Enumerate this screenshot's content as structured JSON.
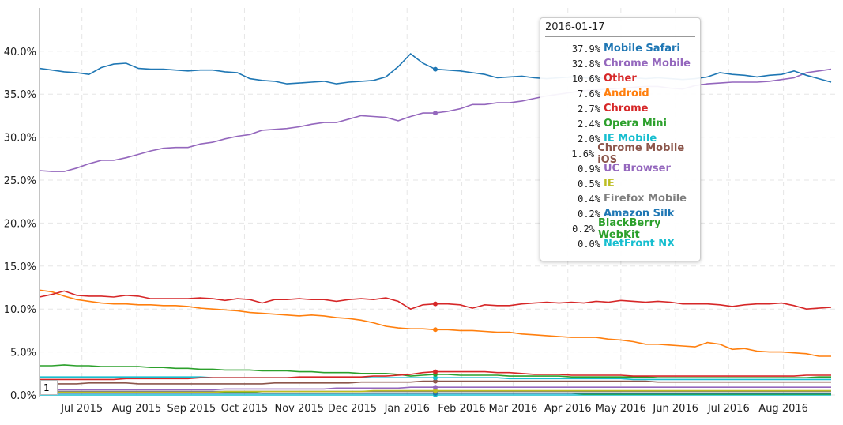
{
  "chart_data": {
    "type": "line",
    "x_range": [
      "2015-06-07",
      "2016-08-28"
    ],
    "x_frequency": "weekly",
    "xticks": [
      "Jul 2015",
      "Aug 2015",
      "Sep 2015",
      "Oct 2015",
      "Nov 2015",
      "Dec 2015",
      "Jan 2016",
      "Feb 2016",
      "Mar 2016",
      "Apr 2016",
      "May 2016",
      "Jun 2016",
      "Jul 2016",
      "Aug 2016"
    ],
    "yticks": [
      "0.0%",
      "5.0%",
      "10.0%",
      "15.0%",
      "20.0%",
      "25.0%",
      "30.0%",
      "35.0%",
      "40.0%"
    ],
    "ylim": [
      0,
      43
    ],
    "grid": true,
    "series": [
      {
        "name": "Mobile Safari",
        "color": "#1f77b4",
        "values": [
          38.0,
          37.8,
          37.6,
          37.5,
          37.3,
          38.1,
          38.5,
          38.6,
          38.0,
          37.9,
          37.9,
          37.8,
          37.7,
          37.8,
          37.8,
          37.6,
          37.5,
          36.8,
          36.6,
          36.5,
          36.2,
          36.3,
          36.4,
          36.5,
          36.2,
          36.4,
          36.5,
          36.6,
          37.0,
          38.2,
          39.7,
          38.6,
          37.9,
          37.8,
          37.7,
          37.5,
          37.3,
          36.9,
          37.0,
          37.1,
          36.9,
          36.8,
          36.9,
          37.0,
          36.9,
          36.8,
          36.9,
          37.0,
          36.9,
          36.8,
          36.9,
          36.8,
          36.7,
          36.8,
          37.0,
          37.5,
          37.3,
          37.2,
          37.0,
          37.2,
          37.3,
          37.7,
          37.2,
          36.8,
          36.4
        ]
      },
      {
        "name": "Chrome Mobile",
        "color": "#9467bd",
        "values": [
          26.1,
          26.0,
          26.0,
          26.4,
          26.9,
          27.3,
          27.3,
          27.6,
          28.0,
          28.4,
          28.7,
          28.8,
          28.8,
          29.2,
          29.4,
          29.8,
          30.1,
          30.3,
          30.8,
          30.9,
          31.0,
          31.2,
          31.5,
          31.7,
          31.7,
          32.1,
          32.5,
          32.4,
          32.3,
          31.9,
          32.4,
          32.8,
          32.8,
          33.0,
          33.3,
          33.8,
          33.8,
          34.0,
          34.0,
          34.2,
          34.5,
          34.8,
          35.0,
          35.2,
          35.4,
          35.5,
          35.6,
          35.7,
          35.8,
          35.9,
          35.9,
          35.7,
          35.6,
          36.0,
          36.2,
          36.3,
          36.4,
          36.4,
          36.4,
          36.5,
          36.7,
          36.9,
          37.5,
          37.7,
          37.9
        ]
      },
      {
        "name": "Other",
        "color": "#d62728",
        "values": [
          11.4,
          11.7,
          12.1,
          11.6,
          11.5,
          11.5,
          11.4,
          11.6,
          11.5,
          11.2,
          11.2,
          11.2,
          11.2,
          11.3,
          11.2,
          11.0,
          11.2,
          11.1,
          10.7,
          11.1,
          11.1,
          11.2,
          11.1,
          11.1,
          10.9,
          11.1,
          11.2,
          11.1,
          11.3,
          10.9,
          10.0,
          10.5,
          10.6,
          10.6,
          10.5,
          10.1,
          10.5,
          10.4,
          10.4,
          10.6,
          10.7,
          10.8,
          10.7,
          10.8,
          10.7,
          10.9,
          10.8,
          11.0,
          10.9,
          10.8,
          10.9,
          10.8,
          10.6,
          10.6,
          10.6,
          10.5,
          10.3,
          10.5,
          10.6,
          10.6,
          10.7,
          10.4,
          10.0,
          10.1,
          10.2
        ]
      },
      {
        "name": "Android",
        "color": "#ff7f0e",
        "values": [
          12.2,
          12.0,
          11.5,
          11.1,
          10.9,
          10.7,
          10.6,
          10.6,
          10.5,
          10.5,
          10.4,
          10.4,
          10.3,
          10.1,
          10.0,
          9.9,
          9.8,
          9.6,
          9.5,
          9.4,
          9.3,
          9.2,
          9.3,
          9.2,
          9.0,
          8.9,
          8.7,
          8.4,
          8.0,
          7.8,
          7.7,
          7.7,
          7.6,
          7.6,
          7.5,
          7.5,
          7.4,
          7.3,
          7.3,
          7.1,
          7.0,
          6.9,
          6.8,
          6.7,
          6.7,
          6.7,
          6.5,
          6.4,
          6.2,
          5.9,
          5.9,
          5.8,
          5.7,
          5.6,
          6.1,
          5.9,
          5.3,
          5.4,
          5.1,
          5.0,
          5.0,
          4.9,
          4.8,
          4.5,
          4.5
        ]
      },
      {
        "name": "Chrome",
        "color": "#d62728",
        "values": [
          1.8,
          1.8,
          1.8,
          1.8,
          1.8,
          1.8,
          1.8,
          1.9,
          1.9,
          1.9,
          1.9,
          1.9,
          1.9,
          2.0,
          2.0,
          2.0,
          2.0,
          2.0,
          2.0,
          2.0,
          2.0,
          2.1,
          2.1,
          2.1,
          2.1,
          2.1,
          2.1,
          2.2,
          2.2,
          2.3,
          2.4,
          2.6,
          2.7,
          2.7,
          2.7,
          2.7,
          2.7,
          2.6,
          2.6,
          2.5,
          2.4,
          2.4,
          2.4,
          2.3,
          2.3,
          2.3,
          2.3,
          2.3,
          2.2,
          2.2,
          2.2,
          2.2,
          2.2,
          2.2,
          2.2,
          2.2,
          2.2,
          2.2,
          2.2,
          2.2,
          2.2,
          2.2,
          2.3,
          2.3,
          2.3
        ]
      },
      {
        "name": "Opera Mini",
        "color": "#2ca02c",
        "values": [
          3.4,
          3.4,
          3.5,
          3.4,
          3.4,
          3.3,
          3.3,
          3.3,
          3.3,
          3.2,
          3.2,
          3.1,
          3.1,
          3.0,
          3.0,
          2.9,
          2.9,
          2.9,
          2.8,
          2.8,
          2.8,
          2.7,
          2.7,
          2.6,
          2.6,
          2.6,
          2.5,
          2.5,
          2.5,
          2.4,
          2.2,
          2.3,
          2.4,
          2.4,
          2.3,
          2.3,
          2.3,
          2.3,
          2.2,
          2.2,
          2.2,
          2.2,
          2.2,
          2.1,
          2.1,
          2.1,
          2.1,
          2.1,
          2.1,
          2.1,
          2.0,
          2.0,
          2.0,
          2.0,
          2.0,
          2.0,
          2.0,
          2.0,
          2.0,
          2.0,
          2.0,
          2.0,
          2.0,
          2.1,
          2.1
        ]
      },
      {
        "name": "IE Mobile",
        "color": "#17becf",
        "values": [
          2.1,
          2.1,
          2.1,
          2.1,
          2.1,
          2.1,
          2.1,
          2.1,
          2.1,
          2.1,
          2.1,
          2.1,
          2.1,
          2.1,
          2.0,
          2.0,
          2.0,
          2.0,
          2.0,
          2.0,
          2.0,
          2.0,
          2.0,
          2.0,
          2.0,
          2.0,
          2.0,
          2.0,
          2.0,
          2.0,
          2.0,
          2.0,
          2.0,
          2.0,
          2.0,
          2.0,
          2.0,
          2.0,
          1.9,
          1.9,
          1.9,
          1.9,
          1.9,
          1.9,
          1.9,
          1.9,
          1.9,
          1.9,
          1.8,
          1.8,
          1.8,
          1.8,
          1.8,
          1.8,
          1.8,
          1.8,
          1.8,
          1.8,
          1.8,
          1.8,
          1.8,
          1.8,
          1.8,
          1.8,
          1.8
        ]
      },
      {
        "name": "Chrome Mobile iOS",
        "color": "#8c564b",
        "values": [
          1.3,
          1.3,
          1.3,
          1.3,
          1.4,
          1.4,
          1.4,
          1.4,
          1.3,
          1.3,
          1.3,
          1.3,
          1.3,
          1.3,
          1.3,
          1.3,
          1.3,
          1.3,
          1.3,
          1.4,
          1.4,
          1.4,
          1.4,
          1.4,
          1.4,
          1.4,
          1.5,
          1.5,
          1.5,
          1.5,
          1.5,
          1.6,
          1.6,
          1.6,
          1.6,
          1.6,
          1.6,
          1.6,
          1.6,
          1.6,
          1.6,
          1.6,
          1.6,
          1.6,
          1.6,
          1.6,
          1.6,
          1.6,
          1.6,
          1.6,
          1.5,
          1.5,
          1.5,
          1.5,
          1.5,
          1.5,
          1.5,
          1.5,
          1.5,
          1.5,
          1.5,
          1.5,
          1.5,
          1.5,
          1.5
        ]
      },
      {
        "name": "UC Browser",
        "color": "#9467bd",
        "values": [
          0.6,
          0.6,
          0.6,
          0.6,
          0.6,
          0.6,
          0.6,
          0.6,
          0.6,
          0.6,
          0.6,
          0.6,
          0.6,
          0.6,
          0.6,
          0.7,
          0.7,
          0.7,
          0.7,
          0.7,
          0.7,
          0.7,
          0.7,
          0.7,
          0.8,
          0.8,
          0.8,
          0.8,
          0.8,
          0.8,
          0.9,
          0.9,
          0.9,
          0.9,
          0.9,
          0.9,
          0.9,
          0.9,
          0.9,
          0.9,
          0.9,
          0.9,
          0.9,
          0.9,
          0.9,
          0.9,
          0.9,
          0.9,
          0.9,
          0.9,
          0.9,
          0.9,
          0.9,
          0.9,
          0.9,
          0.9,
          0.9,
          0.9,
          0.9,
          0.9,
          0.9,
          0.9,
          0.9,
          0.9,
          0.9
        ]
      },
      {
        "name": "IE",
        "color": "#bcbd22",
        "values": [
          0.3,
          0.3,
          0.3,
          0.3,
          0.3,
          0.3,
          0.3,
          0.3,
          0.3,
          0.3,
          0.3,
          0.3,
          0.3,
          0.3,
          0.3,
          0.4,
          0.4,
          0.4,
          0.4,
          0.4,
          0.4,
          0.4,
          0.4,
          0.4,
          0.4,
          0.4,
          0.4,
          0.5,
          0.5,
          0.5,
          0.5,
          0.5,
          0.5,
          0.5,
          0.5,
          0.5,
          0.5,
          0.5,
          0.5,
          0.5,
          0.5,
          0.5,
          0.5,
          0.5,
          0.5,
          0.5,
          0.5,
          0.5,
          0.5,
          0.5,
          0.5,
          0.5,
          0.5,
          0.5,
          0.5,
          0.5,
          0.5,
          0.5,
          0.5,
          0.5,
          0.5,
          0.5,
          0.5,
          0.5,
          0.5
        ]
      },
      {
        "name": "Firefox Mobile",
        "color": "#7f7f7f",
        "values": [
          0.4,
          0.4,
          0.4,
          0.4,
          0.4,
          0.4,
          0.4,
          0.4,
          0.4,
          0.4,
          0.4,
          0.4,
          0.4,
          0.4,
          0.4,
          0.4,
          0.4,
          0.4,
          0.4,
          0.4,
          0.4,
          0.4,
          0.4,
          0.4,
          0.4,
          0.4,
          0.4,
          0.4,
          0.4,
          0.4,
          0.4,
          0.4,
          0.4,
          0.4,
          0.4,
          0.4,
          0.4,
          0.4,
          0.4,
          0.4,
          0.4,
          0.4,
          0.4,
          0.4,
          0.4,
          0.4,
          0.4,
          0.4,
          0.4,
          0.4,
          0.4,
          0.4,
          0.4,
          0.4,
          0.4,
          0.4,
          0.4,
          0.4,
          0.4,
          0.4,
          0.4,
          0.4,
          0.4,
          0.4,
          0.4
        ]
      },
      {
        "name": "Amazon Silk",
        "color": "#1f77b4",
        "values": [
          0.2,
          0.2,
          0.2,
          0.2,
          0.2,
          0.2,
          0.2,
          0.2,
          0.2,
          0.2,
          0.2,
          0.2,
          0.2,
          0.2,
          0.2,
          0.2,
          0.2,
          0.2,
          0.2,
          0.2,
          0.2,
          0.2,
          0.2,
          0.2,
          0.2,
          0.2,
          0.2,
          0.2,
          0.2,
          0.2,
          0.2,
          0.2,
          0.2,
          0.2,
          0.2,
          0.2,
          0.2,
          0.2,
          0.2,
          0.2,
          0.2,
          0.2,
          0.2,
          0.2,
          0.2,
          0.2,
          0.2,
          0.2,
          0.2,
          0.2,
          0.2,
          0.2,
          0.2,
          0.2,
          0.2,
          0.2,
          0.2,
          0.2,
          0.2,
          0.2,
          0.2,
          0.2,
          0.2,
          0.2,
          0.2
        ]
      },
      {
        "name": "BlackBerry WebKit",
        "color": "#2ca02c",
        "values": [
          0.3,
          0.3,
          0.3,
          0.3,
          0.3,
          0.3,
          0.3,
          0.3,
          0.3,
          0.3,
          0.3,
          0.3,
          0.3,
          0.3,
          0.3,
          0.3,
          0.3,
          0.3,
          0.2,
          0.2,
          0.2,
          0.2,
          0.2,
          0.2,
          0.2,
          0.2,
          0.2,
          0.2,
          0.2,
          0.2,
          0.2,
          0.2,
          0.2,
          0.2,
          0.2,
          0.2,
          0.2,
          0.2,
          0.2,
          0.2,
          0.2,
          0.2,
          0.2,
          0.2,
          0.1,
          0.1,
          0.1,
          0.1,
          0.1,
          0.1,
          0.1,
          0.1,
          0.1,
          0.1,
          0.1,
          0.1,
          0.1,
          0.1,
          0.1,
          0.1,
          0.1,
          0.1,
          0.1,
          0.1,
          0.1
        ]
      },
      {
        "name": "NetFront NX",
        "color": "#17becf",
        "values": [
          0.0,
          0.0,
          0.0,
          0.0,
          0.0,
          0.0,
          0.0,
          0.0,
          0.0,
          0.0,
          0.0,
          0.0,
          0.0,
          0.0,
          0.0,
          0.0,
          0.0,
          0.0,
          0.0,
          0.0,
          0.0,
          0.0,
          0.0,
          0.0,
          0.0,
          0.0,
          0.0,
          0.0,
          0.0,
          0.0,
          0.0,
          0.0,
          0.0,
          0.0,
          0.0,
          0.0,
          0.0,
          0.0,
          0.0,
          0.0,
          0.0,
          0.0,
          0.0,
          0.0,
          0.0,
          0.0,
          0.0,
          0.0,
          0.0,
          0.0,
          0.0,
          0.0,
          0.0,
          0.0,
          0.0,
          0.0,
          0.0,
          0.0,
          0.0,
          0.0,
          0.0,
          0.0,
          0.0,
          0.0,
          0.0
        ]
      }
    ]
  },
  "tooltip": {
    "date": "2016-01-17",
    "rows": [
      {
        "value": "37.9%",
        "name": "Mobile Safari",
        "color": "#1f77b4"
      },
      {
        "value": "32.8%",
        "name": "Chrome Mobile",
        "color": "#9467bd"
      },
      {
        "value": "10.6%",
        "name": "Other",
        "color": "#d62728"
      },
      {
        "value": "7.6%",
        "name": "Android",
        "color": "#ff7f0e"
      },
      {
        "value": "2.7%",
        "name": "Chrome",
        "color": "#d62728"
      },
      {
        "value": "2.4%",
        "name": "Opera Mini",
        "color": "#2ca02c"
      },
      {
        "value": "2.0%",
        "name": "IE Mobile",
        "color": "#17becf"
      },
      {
        "value": "1.6%",
        "name": "Chrome Mobile iOS",
        "color": "#8c564b"
      },
      {
        "value": "0.9%",
        "name": "UC Browser",
        "color": "#9467bd"
      },
      {
        "value": "0.5%",
        "name": "IE",
        "color": "#bcbd22"
      },
      {
        "value": "0.4%",
        "name": "Firefox Mobile",
        "color": "#7f7f7f"
      },
      {
        "value": "0.2%",
        "name": "Amazon Silk",
        "color": "#1f77b4"
      },
      {
        "value": "0.2%",
        "name": "BlackBerry WebKit",
        "color": "#2ca02c"
      },
      {
        "value": "0.0%",
        "name": "NetFront NX",
        "color": "#17becf"
      }
    ]
  },
  "rolling_period": {
    "value": "1"
  }
}
